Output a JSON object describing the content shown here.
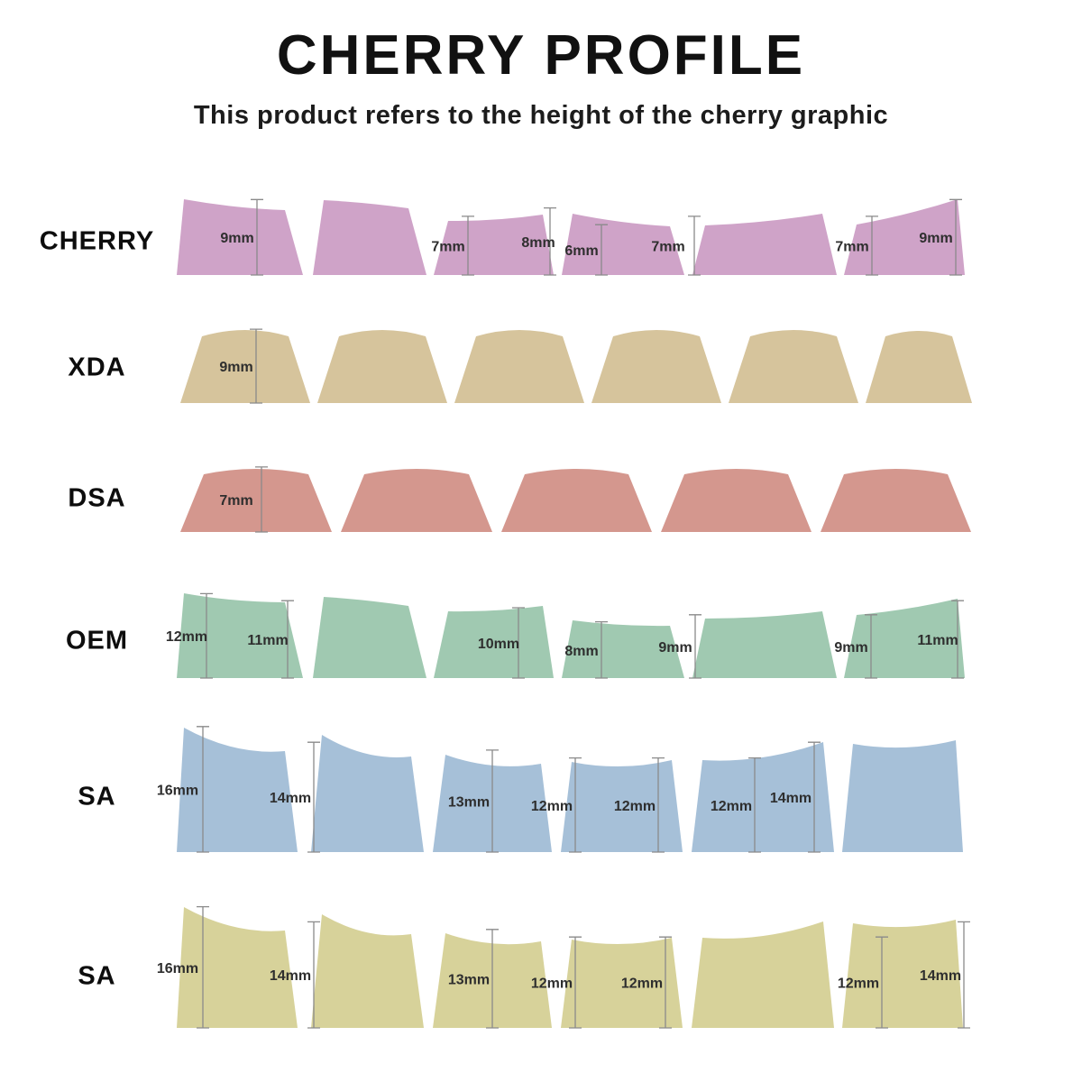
{
  "title": "CHERRY PROFILE",
  "subtitle": "This product refers to the height of the cherry graphic",
  "rows": [
    {
      "label": "CHERRY",
      "color": "#cfa3c8",
      "measurements": [
        "9mm",
        "7mm",
        "8mm",
        "6mm",
        "7mm",
        "7mm",
        "9mm"
      ]
    },
    {
      "label": "XDA",
      "color": "#d6c49c",
      "measurements": [
        "9mm"
      ]
    },
    {
      "label": "DSA",
      "color": "#d4978e",
      "measurements": [
        "7mm"
      ]
    },
    {
      "label": "OEM",
      "color": "#a0c9b1",
      "measurements": [
        "12mm",
        "11mm",
        "10mm",
        "8mm",
        "9mm",
        "9mm",
        "11mm"
      ]
    },
    {
      "label": "SA",
      "color": "#a6c0d8",
      "measurements": [
        "16mm",
        "14mm",
        "13mm",
        "12mm",
        "12mm",
        "12mm",
        "14mm"
      ]
    },
    {
      "label": "SA",
      "color": "#d7d29a",
      "measurements": [
        "16mm",
        "14mm",
        "13mm",
        "12mm",
        "12mm",
        "12mm",
        "14mm"
      ]
    }
  ]
}
